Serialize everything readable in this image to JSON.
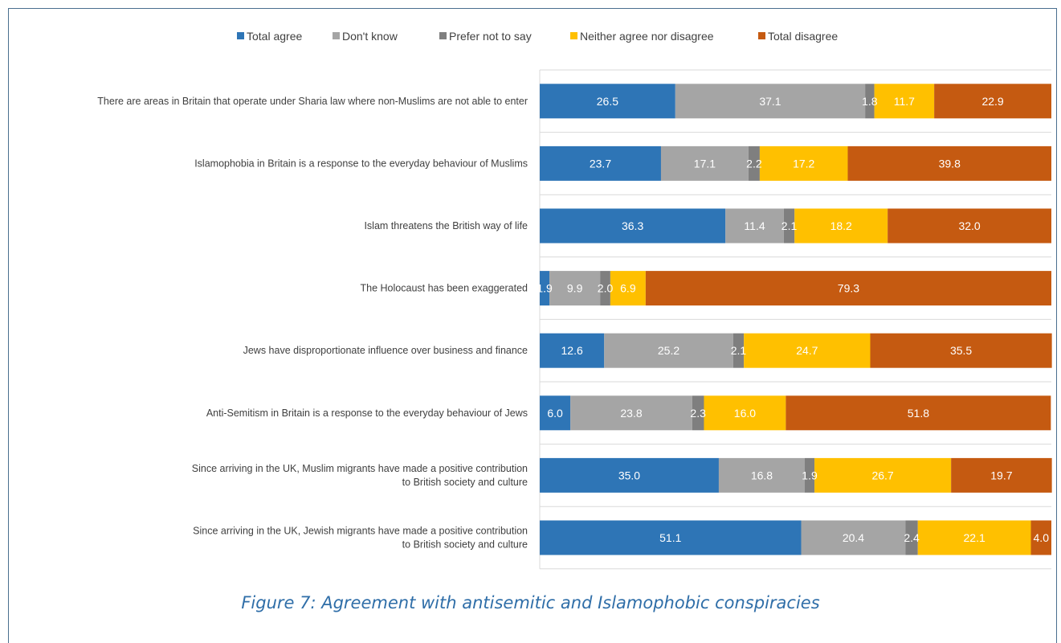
{
  "caption": "Figure 7: Agreement with antisemitic and Islamophobic conspiracies",
  "chart_data": {
    "type": "bar",
    "orientation": "horizontal",
    "stacked": true,
    "xlim": [
      0,
      100
    ],
    "grid": true,
    "legend_position": "top",
    "categories": [
      [
        "There are areas in Britain that operate under Sharia law where non-Muslims are not able to enter"
      ],
      [
        "Islamophobia in Britain is a response to the everyday behaviour of Muslims"
      ],
      [
        "Islam threatens the British way of life"
      ],
      [
        "The Holocaust has been exaggerated"
      ],
      [
        "Jews have disproportionate influence over business and finance"
      ],
      [
        "Anti-Semitism in Britain is a response to the everyday behaviour of Jews"
      ],
      [
        "Since arriving in the UK, Muslim migrants have made a positive contribution",
        "to British society and culture"
      ],
      [
        "Since arriving in the UK, Jewish migrants have made a positive contribution",
        "to British society and culture"
      ]
    ],
    "series": [
      {
        "name": "Total agree",
        "color": "#2e75b6",
        "values": [
          26.5,
          23.7,
          36.3,
          1.9,
          12.6,
          6.0,
          35.0,
          51.1
        ],
        "labels": [
          "26.5",
          "23.7",
          "36.3",
          "1.9",
          "12.6",
          "6.0",
          "35.0",
          "51.1"
        ]
      },
      {
        "name": "Don't know",
        "color": "#a5a5a5",
        "values": [
          37.1,
          17.1,
          11.4,
          9.9,
          25.2,
          23.8,
          16.8,
          20.4
        ],
        "labels": [
          "37.1",
          "17.1",
          "11.4",
          "9.9",
          "25.2",
          "23.8",
          "16.8",
          "20.4"
        ]
      },
      {
        "name": "Prefer not to say",
        "color": "#7f7f7f",
        "values": [
          1.8,
          2.2,
          2.1,
          2.0,
          2.1,
          2.3,
          1.9,
          2.4
        ],
        "labels": [
          "1.8",
          "2.2",
          "2.1",
          "2.0",
          "2.1",
          "2.3",
          "1.9",
          "2.4"
        ]
      },
      {
        "name": "Neither agree nor disagree",
        "color": "#ffc000",
        "values": [
          11.7,
          17.2,
          18.2,
          6.9,
          24.7,
          16.0,
          26.7,
          22.1
        ],
        "labels": [
          "11.7",
          "17.2",
          "18.2",
          "6.9",
          "24.7",
          "16.0",
          "26.7",
          "22.1"
        ]
      },
      {
        "name": "Total disagree",
        "color": "#c55a11",
        "values": [
          22.9,
          39.8,
          32.0,
          79.3,
          35.5,
          51.8,
          19.7,
          4.0
        ],
        "labels": [
          "22.9",
          "39.8",
          "32.0",
          "79.3",
          "35.5",
          "51.8",
          "19.7",
          "4.0"
        ]
      }
    ]
  }
}
